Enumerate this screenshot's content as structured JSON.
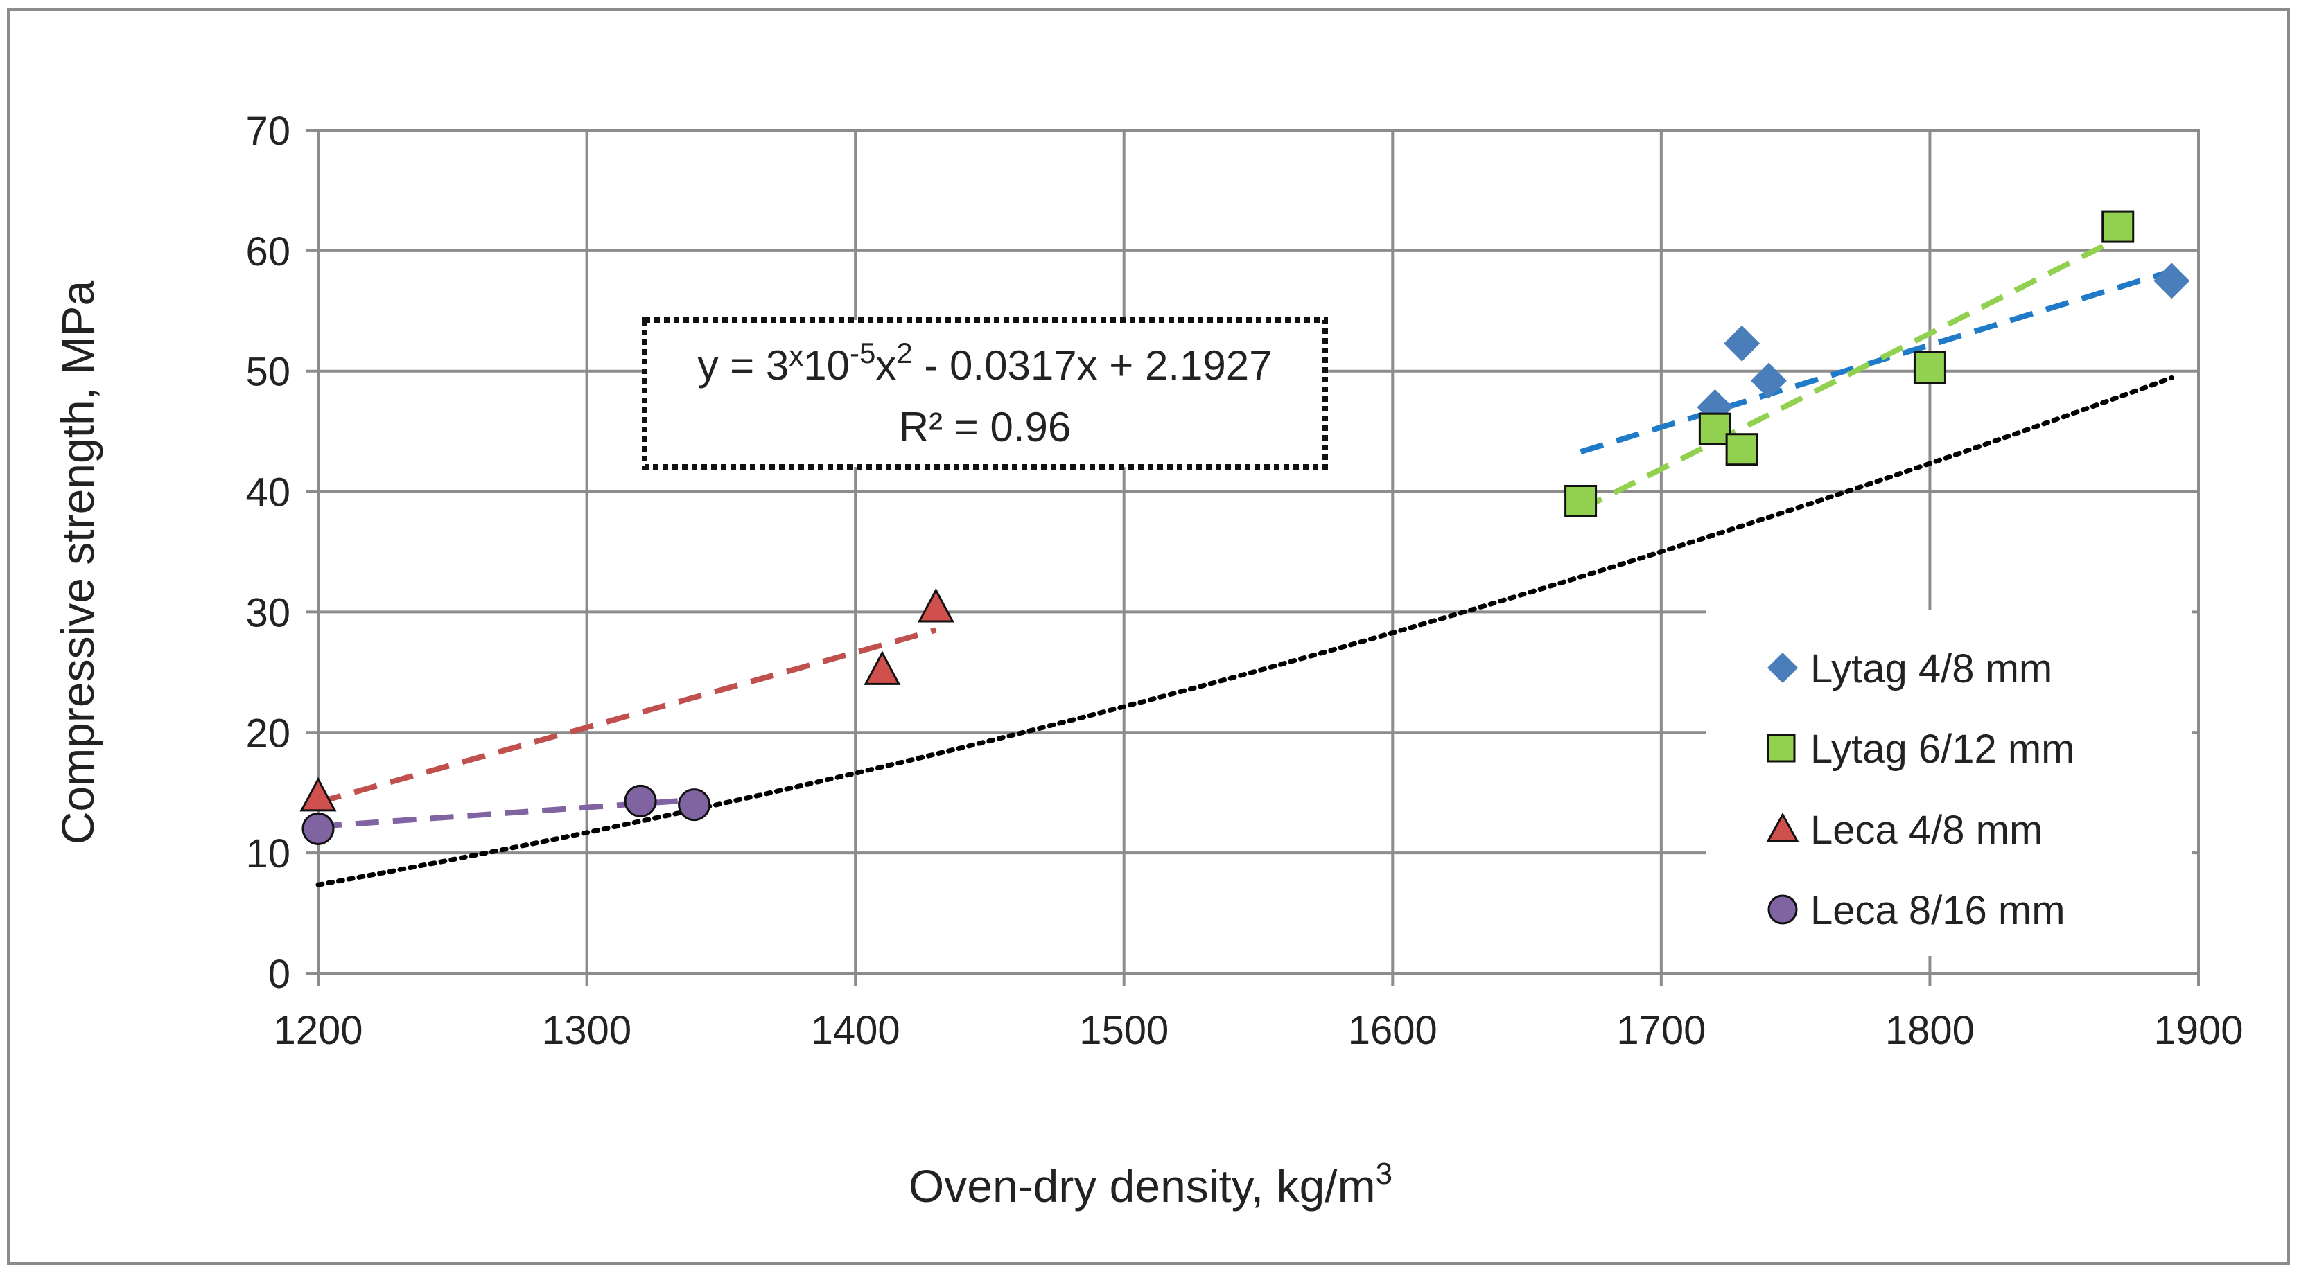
{
  "chart_data": {
    "type": "scatter",
    "title": "",
    "xlabel": {
      "main": "Oven-dry density,  kg/m",
      "superscript": "3"
    },
    "ylabel": "Compressive strength,  MPa",
    "xlim": [
      1200,
      1900
    ],
    "ylim": [
      0,
      70
    ],
    "xticks": [
      1200,
      1300,
      1400,
      1500,
      1600,
      1700,
      1800,
      1900
    ],
    "yticks": [
      0,
      10,
      20,
      30,
      40,
      50,
      60,
      70
    ],
    "grid": true,
    "legend_position": "right",
    "series": [
      {
        "name": "Lytag 4/8 mm",
        "marker": "diamond",
        "color": "#4A7EBB",
        "points": [
          [
            1720,
            47
          ],
          [
            1730,
            52.3
          ],
          [
            1740,
            49.2
          ],
          [
            1890,
            57.5
          ]
        ],
        "trend": {
          "line_color": "#1F7BC8",
          "x": [
            1670,
            1890
          ],
          "y": [
            43.3,
            58.3
          ]
        }
      },
      {
        "name": "Lytag 6/12 mm",
        "marker": "square",
        "color": "#92D050",
        "points": [
          [
            1670,
            39.2
          ],
          [
            1720,
            45.2
          ],
          [
            1730,
            43.5
          ],
          [
            1800,
            50.3
          ],
          [
            1870,
            62
          ]
        ],
        "trend": {
          "line_color": "#92D050",
          "x": [
            1670,
            1870
          ],
          "y": [
            38.5,
            61
          ]
        }
      },
      {
        "name": "Leca 4/8 mm",
        "marker": "triangle",
        "color": "#D0504D",
        "points": [
          [
            1200,
            14.5
          ],
          [
            1410,
            25
          ],
          [
            1430,
            30.2
          ]
        ],
        "trend": {
          "line_color": "#C0504D",
          "x": [
            1200,
            1430
          ],
          "y": [
            14.2,
            28.5
          ]
        }
      },
      {
        "name": "Leca 8/16 mm",
        "marker": "circle",
        "color": "#8064A2",
        "points": [
          [
            1200,
            12
          ],
          [
            1320,
            14.3
          ],
          [
            1340,
            14
          ]
        ],
        "trend": {
          "line_color": "#8064A2",
          "x": [
            1200,
            1340
          ],
          "y": [
            12.2,
            14.4
          ]
        }
      }
    ],
    "overall_fit": {
      "type": "polynomial",
      "coefficients": [
        3e-05,
        -0.0317,
        2.1927
      ],
      "range": [
        1200,
        1890
      ],
      "line_color": "#000000",
      "equation_parts": {
        "p1": "y = 3",
        "p2": "x",
        "p3": "10",
        "p4": "-5",
        "p5": "x",
        "p6": "2",
        "p7": " - 0.0317x + 2.1927"
      },
      "r2_label": "R² = 0.96"
    }
  }
}
